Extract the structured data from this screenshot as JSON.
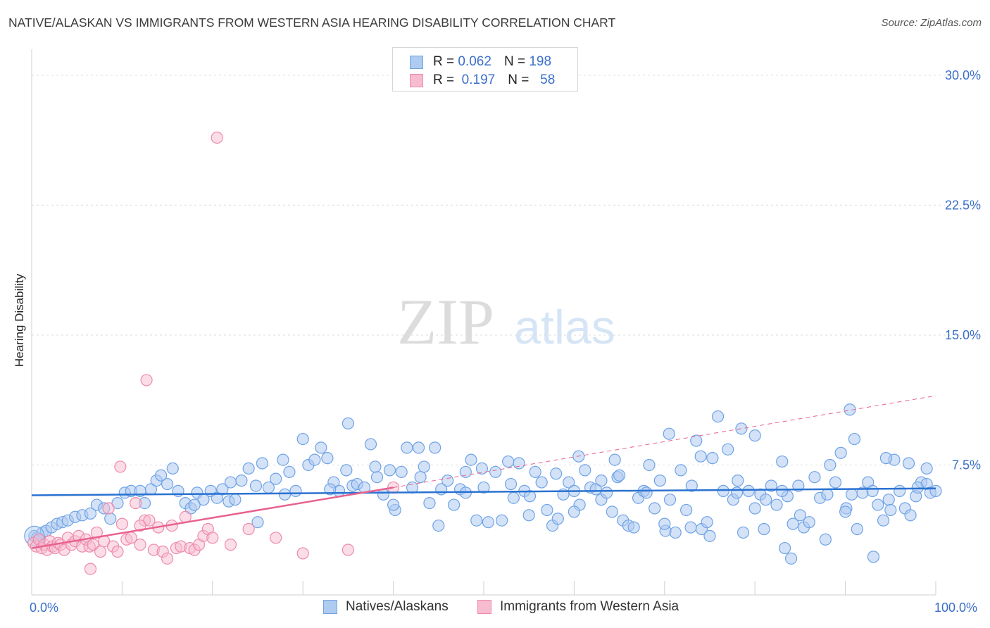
{
  "title": "NATIVE/ALASKAN VS IMMIGRANTS FROM WESTERN ASIA HEARING DISABILITY CORRELATION CHART",
  "source": "Source: ZipAtlas.com",
  "watermark": {
    "zip": "ZIP",
    "atlas": "atlas"
  },
  "colors": {
    "blue": "#6fa3e6",
    "blue_fill": "#aecbf0",
    "blue_line": "#2a72d1",
    "pink": "#ee8aab",
    "pink_fill": "#f7bcd0",
    "pink_line": "#e8628e",
    "axis_text": "#3a6fc9"
  },
  "legend_top": {
    "rows": [
      {
        "r_label": "R =",
        "r_value": "0.062",
        "n_label": "N =",
        "n_value": "198"
      },
      {
        "r_label": "R =",
        "r_value": "0.197",
        "n_label": "N =",
        "n_value": "58"
      }
    ]
  },
  "chart_data": {
    "type": "scatter",
    "ylabel": "Hearing Disability",
    "xlabel": "",
    "xlim": [
      0,
      100
    ],
    "ylim": [
      0,
      31.5
    ],
    "x_tick_labels": [
      "0.0%",
      "100.0%"
    ],
    "y_ticks": [
      7.5,
      15.0,
      22.5,
      30.0
    ],
    "y_tick_labels": [
      "7.5%",
      "15.0%",
      "22.5%",
      "30.0%"
    ],
    "grid": "horizontal dashed",
    "legend": "bottom",
    "series": [
      {
        "name": "Natives/Alaskans",
        "color": "#6fa3e6",
        "r": 0.062,
        "n": 198,
        "trend": {
          "x": [
            0,
            100
          ],
          "y": [
            5.75,
            6.15
          ]
        },
        "points": [
          [
            0.3,
            3.4
          ],
          [
            0.6,
            3.3
          ],
          [
            0.9,
            3.2
          ],
          [
            1.2,
            3.6
          ],
          [
            1.6,
            3.7
          ],
          [
            2.2,
            3.9
          ],
          [
            2.8,
            4.1
          ],
          [
            3.4,
            4.2
          ],
          [
            4.0,
            4.3
          ],
          [
            4.8,
            4.5
          ],
          [
            5.6,
            4.6
          ],
          [
            6.5,
            4.7
          ],
          [
            7.2,
            5.2
          ],
          [
            8.0,
            5.0
          ],
          [
            8.7,
            4.4
          ],
          [
            9.5,
            5.3
          ],
          [
            10.3,
            5.9
          ],
          [
            11.0,
            6.0
          ],
          [
            12.0,
            6.0
          ],
          [
            12.5,
            5.3
          ],
          [
            13.2,
            6.1
          ],
          [
            13.8,
            6.6
          ],
          [
            14.3,
            6.9
          ],
          [
            15.0,
            6.4
          ],
          [
            15.6,
            7.3
          ],
          [
            16.2,
            6.0
          ],
          [
            17.0,
            5.3
          ],
          [
            17.6,
            5.0
          ],
          [
            18.3,
            5.9
          ],
          [
            19.0,
            5.5
          ],
          [
            19.8,
            6.0
          ],
          [
            20.5,
            5.6
          ],
          [
            21.1,
            6.1
          ],
          [
            21.8,
            5.4
          ],
          [
            22.5,
            5.5
          ],
          [
            23.2,
            6.6
          ],
          [
            24.0,
            7.3
          ],
          [
            24.8,
            6.3
          ],
          [
            25.5,
            7.6
          ],
          [
            26.2,
            6.2
          ],
          [
            27.0,
            6.7
          ],
          [
            27.8,
            7.8
          ],
          [
            28.5,
            7.1
          ],
          [
            29.2,
            6.0
          ],
          [
            30.0,
            9.0
          ],
          [
            30.6,
            7.5
          ],
          [
            31.3,
            7.8
          ],
          [
            32.0,
            8.5
          ],
          [
            32.7,
            7.9
          ],
          [
            33.4,
            6.5
          ],
          [
            34.0,
            6.0
          ],
          [
            34.8,
            7.2
          ],
          [
            35.5,
            6.3
          ],
          [
            36.0,
            6.4
          ],
          [
            36.8,
            6.2
          ],
          [
            37.5,
            8.7
          ],
          [
            38.2,
            6.8
          ],
          [
            38.9,
            5.8
          ],
          [
            39.6,
            7.2
          ],
          [
            40.2,
            4.9
          ],
          [
            40.9,
            7.1
          ],
          [
            41.5,
            8.5
          ],
          [
            42.1,
            6.2
          ],
          [
            42.8,
            8.5
          ],
          [
            43.4,
            7.4
          ],
          [
            44.0,
            5.3
          ],
          [
            44.6,
            8.5
          ],
          [
            45.3,
            6.1
          ],
          [
            46.0,
            6.6
          ],
          [
            46.7,
            5.2
          ],
          [
            47.4,
            6.1
          ],
          [
            48.0,
            7.1
          ],
          [
            48.6,
            7.8
          ],
          [
            49.2,
            4.3
          ],
          [
            49.8,
            7.3
          ],
          [
            50.5,
            4.2
          ],
          [
            51.3,
            7.1
          ],
          [
            52.0,
            4.3
          ],
          [
            52.7,
            7.7
          ],
          [
            53.3,
            5.6
          ],
          [
            53.9,
            7.6
          ],
          [
            54.5,
            6.0
          ],
          [
            55.1,
            5.7
          ],
          [
            55.7,
            7.1
          ],
          [
            56.4,
            6.5
          ],
          [
            57.0,
            4.9
          ],
          [
            57.6,
            4.0
          ],
          [
            58.2,
            4.4
          ],
          [
            58.8,
            5.8
          ],
          [
            59.4,
            6.5
          ],
          [
            60.0,
            6.0
          ],
          [
            60.6,
            5.2
          ],
          [
            61.2,
            7.2
          ],
          [
            61.8,
            6.2
          ],
          [
            62.4,
            6.1
          ],
          [
            63.0,
            5.5
          ],
          [
            63.6,
            5.9
          ],
          [
            64.2,
            4.8
          ],
          [
            64.8,
            6.8
          ],
          [
            65.4,
            4.3
          ],
          [
            66.0,
            4.0
          ],
          [
            66.6,
            3.9
          ],
          [
            67.1,
            5.6
          ],
          [
            67.7,
            6.0
          ],
          [
            68.3,
            7.5
          ],
          [
            68.9,
            5.0
          ],
          [
            69.5,
            6.6
          ],
          [
            70.1,
            3.7
          ],
          [
            70.6,
            5.5
          ],
          [
            71.2,
            3.6
          ],
          [
            71.8,
            7.2
          ],
          [
            72.4,
            4.9
          ],
          [
            72.9,
            3.9
          ],
          [
            73.5,
            8.9
          ],
          [
            74.1,
            3.8
          ],
          [
            74.7,
            4.2
          ],
          [
            75.3,
            7.9
          ],
          [
            75.9,
            10.3
          ],
          [
            76.5,
            6.0
          ],
          [
            77.0,
            8.4
          ],
          [
            77.6,
            5.5
          ],
          [
            78.1,
            6.6
          ],
          [
            78.7,
            3.6
          ],
          [
            79.3,
            6.0
          ],
          [
            80.0,
            9.2
          ],
          [
            80.6,
            5.8
          ],
          [
            81.2,
            5.5
          ],
          [
            81.8,
            6.3
          ],
          [
            82.4,
            5.2
          ],
          [
            83.0,
            7.7
          ],
          [
            83.6,
            5.7
          ],
          [
            84.2,
            4.1
          ],
          [
            84.8,
            6.3
          ],
          [
            85.4,
            3.9
          ],
          [
            86.0,
            4.2
          ],
          [
            86.6,
            6.8
          ],
          [
            87.2,
            5.6
          ],
          [
            87.8,
            3.2
          ],
          [
            88.3,
            7.5
          ],
          [
            88.9,
            6.5
          ],
          [
            89.5,
            8.2
          ],
          [
            90.1,
            5.0
          ],
          [
            90.7,
            5.8
          ],
          [
            91.3,
            3.8
          ],
          [
            91.9,
            5.9
          ],
          [
            92.5,
            6.5
          ],
          [
            93.1,
            2.2
          ],
          [
            93.6,
            5.2
          ],
          [
            94.2,
            4.3
          ],
          [
            94.8,
            5.5
          ],
          [
            95.4,
            7.8
          ],
          [
            96.0,
            6.0
          ],
          [
            96.6,
            5.0
          ],
          [
            97.2,
            4.6
          ],
          [
            97.8,
            5.7
          ],
          [
            98.4,
            6.5
          ],
          [
            99.0,
            6.4
          ],
          [
            99.4,
            5.9
          ],
          [
            100.0,
            6.0
          ],
          [
            25.0,
            4.2
          ],
          [
            40.0,
            5.2
          ],
          [
            45.0,
            4.0
          ],
          [
            50.0,
            6.2
          ],
          [
            55.0,
            4.6
          ],
          [
            60.0,
            4.8
          ],
          [
            65.0,
            6.9
          ],
          [
            70.0,
            4.1
          ],
          [
            75.0,
            3.4
          ],
          [
            80.0,
            5.0
          ],
          [
            85.0,
            4.6
          ],
          [
            90.0,
            4.8
          ],
          [
            95.0,
            4.9
          ],
          [
            18.0,
            5.2
          ],
          [
            22.0,
            6.5
          ],
          [
            28.0,
            5.8
          ],
          [
            33.0,
            6.1
          ],
          [
            38.0,
            7.4
          ],
          [
            43.0,
            6.8
          ],
          [
            48.0,
            5.9
          ],
          [
            53.0,
            6.4
          ],
          [
            58.0,
            7.0
          ],
          [
            63.0,
            6.6
          ],
          [
            68.0,
            5.9
          ],
          [
            73.0,
            6.3
          ],
          [
            78.0,
            5.9
          ],
          [
            83.0,
            6.0
          ],
          [
            88.0,
            5.8
          ],
          [
            93.0,
            6.0
          ],
          [
            98.0,
            6.2
          ],
          [
            35.0,
            9.9
          ],
          [
            60.5,
            8.0
          ],
          [
            64.5,
            7.8
          ],
          [
            70.5,
            9.3
          ],
          [
            74.0,
            8.0
          ],
          [
            78.5,
            9.6
          ],
          [
            90.5,
            10.7
          ],
          [
            91.0,
            9.0
          ],
          [
            94.5,
            7.9
          ],
          [
            97.0,
            7.6
          ],
          [
            99.0,
            7.3
          ],
          [
            81.0,
            3.8
          ],
          [
            84.0,
            2.1
          ],
          [
            83.3,
            2.7
          ]
        ]
      },
      {
        "name": "Immigrants from Western Asia",
        "color": "#ee8aab",
        "r": 0.197,
        "n": 58,
        "trend": {
          "x": [
            0,
            40
          ],
          "y": [
            2.7,
            6.2
          ]
        },
        "trend_extended": {
          "x": [
            40,
            100
          ],
          "y": [
            6.2,
            11.5
          ]
        },
        "points": [
          [
            0.2,
            3.0
          ],
          [
            0.5,
            2.8
          ],
          [
            0.8,
            3.2
          ],
          [
            1.1,
            2.7
          ],
          [
            1.4,
            2.9
          ],
          [
            1.7,
            2.6
          ],
          [
            2.0,
            3.1
          ],
          [
            2.3,
            2.8
          ],
          [
            2.6,
            2.7
          ],
          [
            2.9,
            3.0
          ],
          [
            3.2,
            2.9
          ],
          [
            3.6,
            2.6
          ],
          [
            4.0,
            3.3
          ],
          [
            4.4,
            2.9
          ],
          [
            4.8,
            3.1
          ],
          [
            5.2,
            3.4
          ],
          [
            5.6,
            2.8
          ],
          [
            6.0,
            3.2
          ],
          [
            6.4,
            2.8
          ],
          [
            6.8,
            2.9
          ],
          [
            7.2,
            3.6
          ],
          [
            7.6,
            2.5
          ],
          [
            8.0,
            3.1
          ],
          [
            8.5,
            5.0
          ],
          [
            9.0,
            2.8
          ],
          [
            9.5,
            2.5
          ],
          [
            10.0,
            4.1
          ],
          [
            10.5,
            3.2
          ],
          [
            11.0,
            3.3
          ],
          [
            11.5,
            5.3
          ],
          [
            12.0,
            2.9
          ],
          [
            12.5,
            4.3
          ],
          [
            13.0,
            4.3
          ],
          [
            13.5,
            2.6
          ],
          [
            14.0,
            3.9
          ],
          [
            14.5,
            2.5
          ],
          [
            15.0,
            2.1
          ],
          [
            15.5,
            4.0
          ],
          [
            16.0,
            2.7
          ],
          [
            16.5,
            2.8
          ],
          [
            17.0,
            4.5
          ],
          [
            17.5,
            2.7
          ],
          [
            18.0,
            2.6
          ],
          [
            18.5,
            2.9
          ],
          [
            19.0,
            3.4
          ],
          [
            19.5,
            3.8
          ],
          [
            20.0,
            3.3
          ],
          [
            20.5,
            26.4
          ],
          [
            22.0,
            2.9
          ],
          [
            24.0,
            3.8
          ],
          [
            27.0,
            3.3
          ],
          [
            30.0,
            2.4
          ],
          [
            35.0,
            2.6
          ],
          [
            40.0,
            6.2
          ],
          [
            12.7,
            12.4
          ],
          [
            9.8,
            7.4
          ],
          [
            12.0,
            4.0
          ],
          [
            6.5,
            1.5
          ]
        ]
      }
    ]
  },
  "legend_bottom": {
    "items": [
      "Natives/Alaskans",
      "Immigrants from Western Asia"
    ]
  }
}
